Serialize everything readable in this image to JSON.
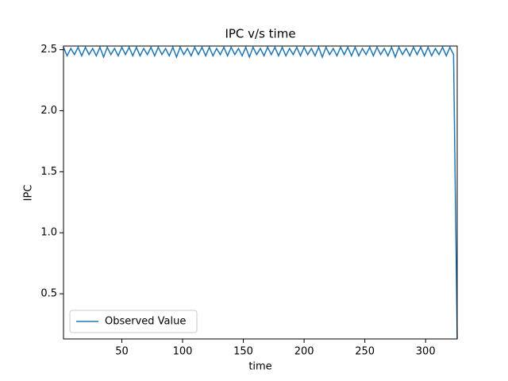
{
  "chart_data": {
    "type": "line",
    "title": "IPC v/s time",
    "xlabel": "time",
    "ylabel": "IPC",
    "x": [
      2,
      5,
      8,
      11,
      14,
      17,
      20,
      23,
      26,
      29,
      32,
      35,
      38,
      41,
      44,
      47,
      50,
      53,
      56,
      59,
      62,
      65,
      68,
      71,
      74,
      77,
      80,
      83,
      86,
      89,
      92,
      95,
      98,
      101,
      104,
      107,
      110,
      113,
      116,
      119,
      122,
      125,
      128,
      131,
      134,
      137,
      140,
      143,
      146,
      149,
      152,
      155,
      158,
      161,
      164,
      167,
      170,
      173,
      176,
      179,
      182,
      185,
      188,
      191,
      194,
      197,
      200,
      203,
      206,
      209,
      212,
      215,
      218,
      221,
      224,
      227,
      230,
      233,
      236,
      239,
      242,
      245,
      248,
      251,
      254,
      257,
      260,
      263,
      266,
      269,
      272,
      275,
      278,
      281,
      284,
      287,
      290,
      293,
      296,
      299,
      302,
      305,
      308,
      311,
      314,
      317,
      320,
      323,
      326
    ],
    "series": [
      {
        "name": "Observed Value",
        "color": "#1f77b4",
        "values": [
          2.52,
          2.45,
          2.51,
          2.46,
          2.52,
          2.45,
          2.52,
          2.46,
          2.51,
          2.45,
          2.52,
          2.44,
          2.52,
          2.46,
          2.51,
          2.45,
          2.52,
          2.46,
          2.52,
          2.45,
          2.52,
          2.45,
          2.51,
          2.46,
          2.52,
          2.45,
          2.52,
          2.46,
          2.51,
          2.45,
          2.52,
          2.44,
          2.52,
          2.46,
          2.51,
          2.45,
          2.52,
          2.46,
          2.52,
          2.45,
          2.52,
          2.45,
          2.51,
          2.46,
          2.52,
          2.45,
          2.52,
          2.46,
          2.51,
          2.45,
          2.52,
          2.44,
          2.52,
          2.46,
          2.51,
          2.45,
          2.52,
          2.46,
          2.52,
          2.45,
          2.52,
          2.45,
          2.51,
          2.46,
          2.52,
          2.45,
          2.52,
          2.46,
          2.51,
          2.45,
          2.52,
          2.44,
          2.52,
          2.46,
          2.51,
          2.45,
          2.52,
          2.46,
          2.52,
          2.45,
          2.52,
          2.45,
          2.51,
          2.46,
          2.52,
          2.45,
          2.52,
          2.46,
          2.51,
          2.45,
          2.52,
          2.44,
          2.52,
          2.46,
          2.51,
          2.45,
          2.52,
          2.46,
          2.52,
          2.45,
          2.52,
          2.45,
          2.51,
          2.46,
          2.52,
          2.45,
          2.52,
          2.46,
          0.13
        ]
      }
    ],
    "xlim": [
      2,
      326
    ],
    "ylim": [
      0.13,
      2.53
    ],
    "xticks": [
      50,
      100,
      150,
      200,
      250,
      300
    ],
    "yticks": [
      0.5,
      {
        "value": 1.0,
        "label": "1.0"
      },
      1.5,
      {
        "value": 2.0,
        "label": "2.0"
      },
      2.5
    ],
    "legend": "lower left"
  }
}
